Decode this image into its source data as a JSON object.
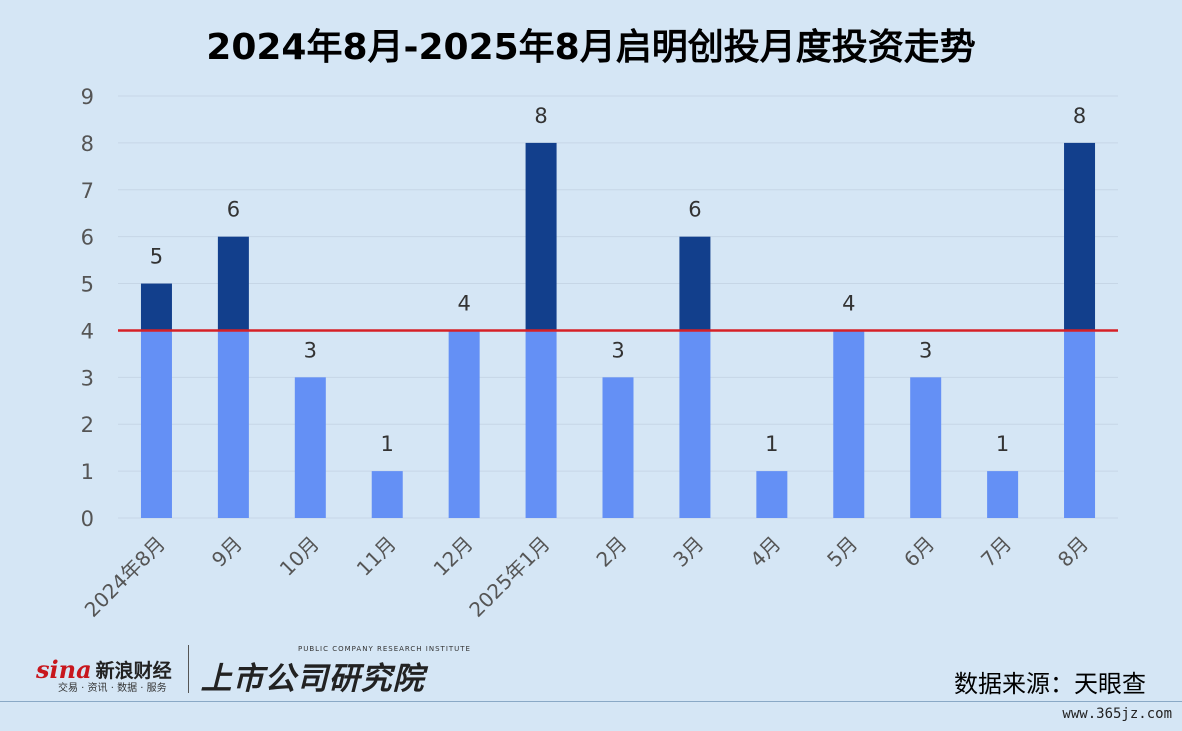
{
  "chart_data": {
    "type": "bar",
    "title": "2024年8月-2025年8月启明创投月度投资走势",
    "categories": [
      "2024年8月",
      "9月",
      "10月",
      "11月",
      "12月",
      "2025年1月",
      "2月",
      "3月",
      "4月",
      "5月",
      "6月",
      "7月",
      "8月"
    ],
    "values": [
      5,
      6,
      3,
      1,
      4,
      8,
      3,
      6,
      1,
      4,
      3,
      1,
      8
    ],
    "data_labels": [
      "5",
      "6",
      "3",
      "1",
      "4",
      "8",
      "3",
      "6",
      "1",
      "4",
      "3",
      "1",
      "8"
    ],
    "ylim": [
      0,
      9
    ],
    "yticks": [
      "0",
      "1",
      "2",
      "3",
      "4",
      "5",
      "6",
      "7",
      "8",
      "9"
    ],
    "reference_line": 4,
    "grid": true,
    "colors": {
      "base_bar": "#6490f5",
      "above_line_bar": "#123f8c",
      "reference_line": "#d62027",
      "grid": "#c6d6e6"
    }
  },
  "footer": {
    "sina_logo": "sina",
    "sina_name": "新浪财经",
    "sina_sub": "交易 · 资讯 · 数据 · 服务",
    "research_name": "上市公司研究院",
    "research_sub": "PUBLIC COMPANY RESEARCH INSTITUTE",
    "source": "数据来源：天眼查",
    "watermark": "www.365jz.com"
  }
}
